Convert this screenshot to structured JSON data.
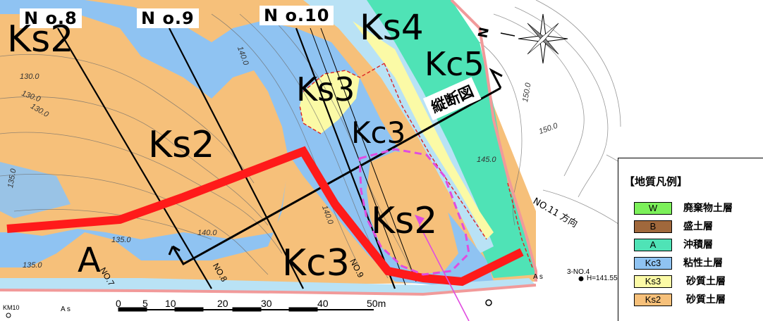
{
  "section_labels": [
    "N o.8",
    "N o.9",
    "N o.10"
  ],
  "geology_labels": {
    "ks2_topleft": "Ks2",
    "ks4": "Ks4",
    "kc5": "Kc5",
    "ks3": "Ks3",
    "kc3_mid": "Kc3",
    "ks2_center": "Ks2",
    "ks2_right": "Ks2",
    "kc3_bottom": "Kc3",
    "a_bottom": "A"
  },
  "profile_section_label": "縦断図",
  "elevations": {
    "e130a": "130.0",
    "e130b": "130.0",
    "e130c": "130.0",
    "e1350a": "135.0",
    "e1350b": "135.0",
    "e1350c": "135.0",
    "e1400a": "140.0",
    "e1400b": "140.0",
    "e1400c": "140.0",
    "e1450": "145.0",
    "e1500": "150.0",
    "e150b": "150.0"
  },
  "scale_bar": {
    "ticks": [
      "0",
      "5",
      "10",
      "20",
      "30",
      "40",
      "50m"
    ]
  },
  "direction_label": "NO.11 方向",
  "misc": {
    "no4": "3-NO.4",
    "height": "H=141.550",
    "as1": "A s",
    "as2": "A s",
    "km": "KM10",
    "no7": "NO.7",
    "no8": "NO.8",
    "no9": "NO.9"
  },
  "legend": {
    "title": "【地質凡例】",
    "items": [
      {
        "code": "W",
        "label": "廃棄物土層",
        "color": "#7cf05a"
      },
      {
        "code": "B",
        "label": "盛土層",
        "color": "#a0683c"
      },
      {
        "code": "A",
        "label": "沖積層",
        "color": "#4fe3b6"
      },
      {
        "code": "Kc3",
        "label": "粘性土層",
        "color": "#8fc3f2"
      },
      {
        "code": "Ks3",
        "label": "砂質土層",
        "color": "#fbfaa6"
      },
      {
        "code": "Ks2",
        "label": "砂質土層",
        "color": "#f6c07a"
      }
    ]
  },
  "colors": {
    "ks2": "#f6c07a",
    "kc3": "#8fc3f2",
    "ks3": "#fbfaa6",
    "alluvial": "#4fe3b6",
    "ks4": "#b9e2f5",
    "route": "#ff1a1a",
    "magenta": "#e04ce0"
  }
}
